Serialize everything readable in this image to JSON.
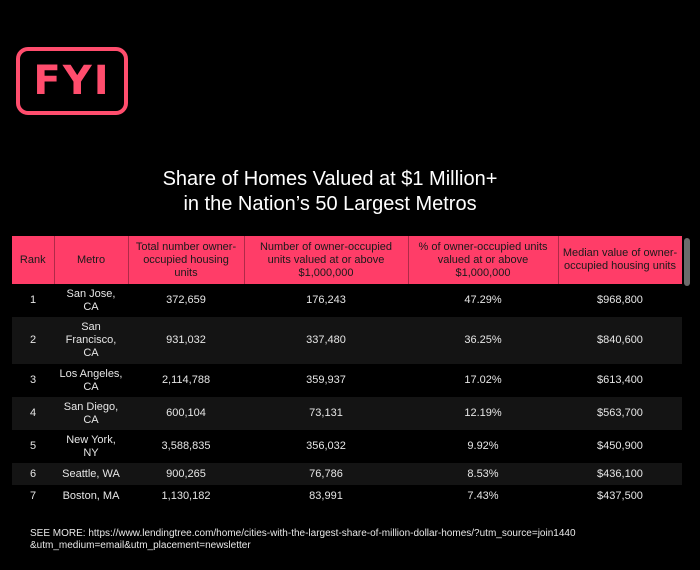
{
  "logo": {
    "text": "FYI",
    "color": "#ff4d6d"
  },
  "title": {
    "line1": "Share of Homes Valued at $1 Million+",
    "line2": "in the Nation’s 50 Largest Metros"
  },
  "table": {
    "header_color": "#ff3d68",
    "columns": [
      "Rank",
      "Metro",
      "Total number owner-occupied housing units",
      "Number of owner-occupied units valued at or above $1,000,000",
      "% of owner-occupied units valued at or above $1,000,000",
      "Median value of owner-occupied housing units"
    ],
    "rows": [
      {
        "rank": "1",
        "metro": "San Jose, CA",
        "total": "372,659",
        "million_units": "176,243",
        "pct": "47.29%",
        "median": "$968,800"
      },
      {
        "rank": "2",
        "metro": "San Francisco, CA",
        "total": "931,032",
        "million_units": "337,480",
        "pct": "36.25%",
        "median": "$840,600"
      },
      {
        "rank": "3",
        "metro": "Los Angeles, CA",
        "total": "2,114,788",
        "million_units": "359,937",
        "pct": "17.02%",
        "median": "$613,400"
      },
      {
        "rank": "4",
        "metro": "San Diego, CA",
        "total": "600,104",
        "million_units": "73,131",
        "pct": "12.19%",
        "median": "$563,700"
      },
      {
        "rank": "5",
        "metro": "New York, NY",
        "total": "3,588,835",
        "million_units": "356,032",
        "pct": "9.92%",
        "median": "$450,900"
      },
      {
        "rank": "6",
        "metro": "Seattle, WA",
        "total": "900,265",
        "million_units": "76,786",
        "pct": "8.53%",
        "median": "$436,100"
      },
      {
        "rank": "7",
        "metro": "Boston, MA",
        "total": "1,130,182",
        "million_units": "83,991",
        "pct": "7.43%",
        "median": "$437,500"
      }
    ]
  },
  "footer": {
    "text": "SEE MORE: https://www.lendingtree.com/home/cities-with-the-largest-share-of-million-dollar-homes/?utm_source=join1440 &utm_medium=email&utm_placement=newsletter"
  }
}
